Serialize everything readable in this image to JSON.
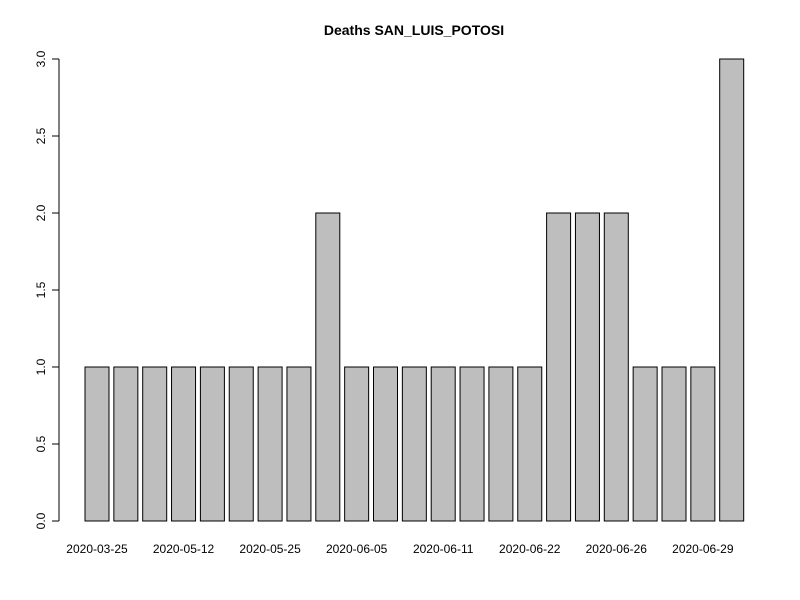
{
  "chart_data": {
    "type": "bar",
    "title": "Deaths SAN_LUIS_POTOSI",
    "xlabel": "",
    "ylabel": "",
    "ylim": [
      0,
      3
    ],
    "yticks": [
      "0.0",
      "0.5",
      "1.0",
      "1.5",
      "2.0",
      "2.5",
      "3.0"
    ],
    "xtick_labels": [
      "2020-03-25",
      "2020-05-12",
      "2020-05-25",
      "2020-06-05",
      "2020-06-11",
      "2020-06-22",
      "2020-06-26",
      "2020-06-29"
    ],
    "values": [
      1,
      1,
      1,
      1,
      1,
      1,
      1,
      1,
      2,
      1,
      1,
      1,
      1,
      1,
      1,
      1,
      2,
      2,
      2,
      1,
      1,
      1,
      3
    ],
    "bar_fill": "#bebebe",
    "bar_stroke": "#000000",
    "grid": false,
    "legend": "none"
  }
}
